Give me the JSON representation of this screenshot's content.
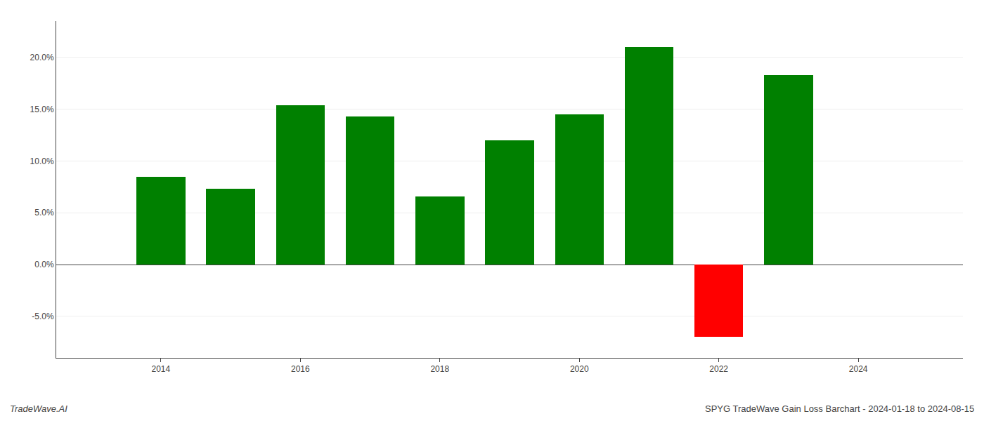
{
  "chart_data": {
    "type": "bar",
    "title": "SPYG TradeWave Gain Loss Barchart - 2024-01-18 to 2024-08-15",
    "annotations": [
      "TradeWave.AI"
    ],
    "x": [
      2014,
      2015,
      2016,
      2017,
      2018,
      2019,
      2020,
      2021,
      2022,
      2023
    ],
    "values": [
      0.085,
      0.073,
      0.154,
      0.143,
      0.066,
      0.12,
      0.145,
      0.21,
      -0.07,
      0.183
    ],
    "colors": [
      "#008000",
      "#008000",
      "#008000",
      "#008000",
      "#008000",
      "#008000",
      "#008000",
      "#008000",
      "#ff0000",
      "#008000"
    ],
    "xlim": [
      2012.5,
      2025.5
    ],
    "xticks": [
      2014,
      2016,
      2018,
      2020,
      2022,
      2024
    ],
    "ylim": [
      -0.09,
      0.235
    ],
    "yticks": [
      {
        "value": -0.05,
        "label": "-5.0%"
      },
      {
        "value": 0,
        "label": "0.0%"
      },
      {
        "value": 0.05,
        "label": "5.0%"
      },
      {
        "value": 0.1,
        "label": "10.0%"
      },
      {
        "value": 0.15,
        "label": "15.0%"
      },
      {
        "value": 0.2,
        "label": "20.0%"
      }
    ],
    "grid": true
  }
}
